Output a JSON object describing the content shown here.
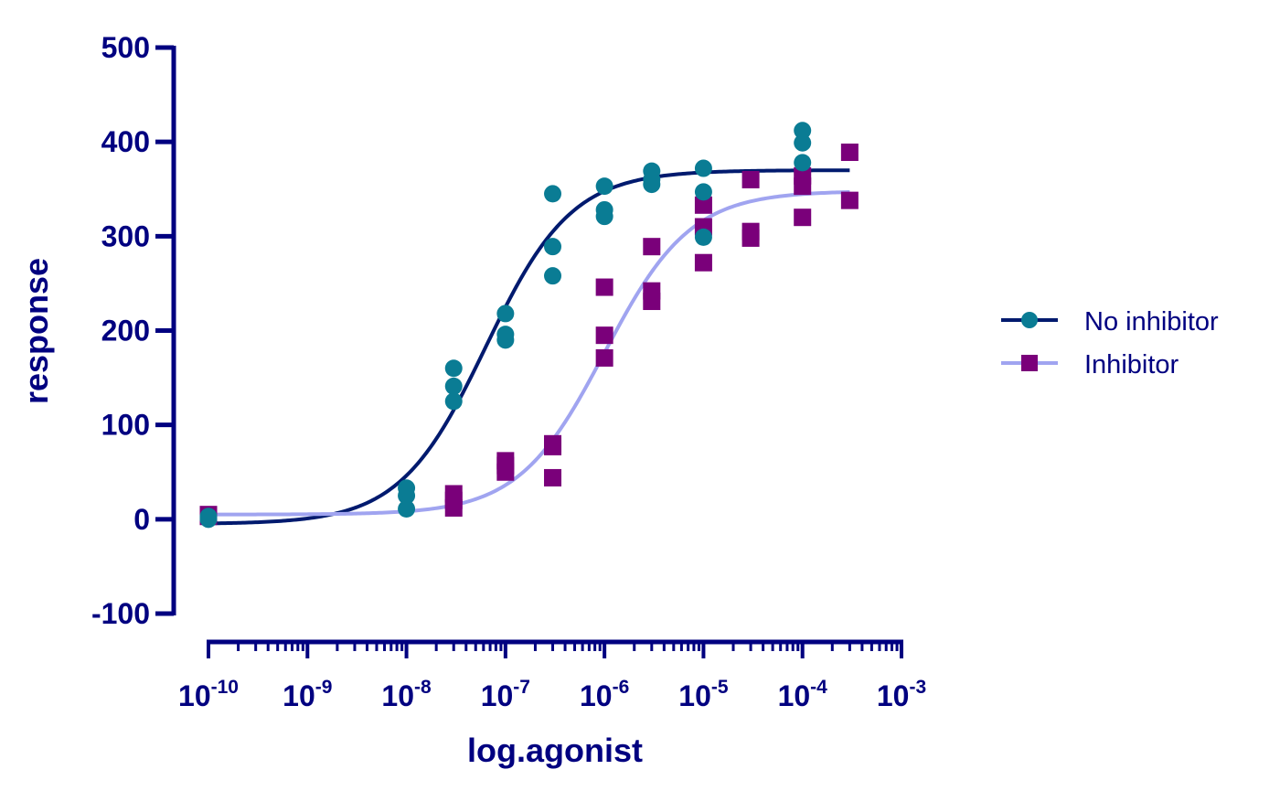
{
  "chart_data": {
    "type": "scatter",
    "xlabel": "log.agonist",
    "ylabel": "response",
    "xscale": "log",
    "xlim": [
      1e-10,
      0.001
    ],
    "ylim": [
      -100,
      500
    ],
    "y_ticks": [
      "-100",
      "0",
      "100",
      "200",
      "300",
      "400",
      "500"
    ],
    "x_ticks": [
      {
        "base": "10",
        "exp": "-10"
      },
      {
        "base": "10",
        "exp": "-9"
      },
      {
        "base": "10",
        "exp": "-8"
      },
      {
        "base": "10",
        "exp": "-7"
      },
      {
        "base": "10",
        "exp": "-6"
      },
      {
        "base": "10",
        "exp": "-5"
      },
      {
        "base": "10",
        "exp": "-4"
      },
      {
        "base": "10",
        "exp": "-3"
      }
    ],
    "grid": false,
    "legend_position": "right",
    "series": [
      {
        "name": "No inhibitor",
        "marker": "circle",
        "marker_color": "#0a7c94",
        "line_color": "#001a6e",
        "fit": {
          "bottom": -5,
          "top": 370,
          "log_ec50": -7.2,
          "hill": 1.0
        },
        "points": [
          [
            1e-10,
            0
          ],
          [
            1e-10,
            3
          ],
          [
            1e-08,
            11
          ],
          [
            1e-08,
            25
          ],
          [
            1e-08,
            33
          ],
          [
            3e-08,
            125
          ],
          [
            3e-08,
            141
          ],
          [
            3e-08,
            160
          ],
          [
            1e-07,
            190
          ],
          [
            1e-07,
            196
          ],
          [
            1e-07,
            218
          ],
          [
            3e-07,
            258
          ],
          [
            3e-07,
            289
          ],
          [
            3e-07,
            345
          ],
          [
            1e-06,
            321
          ],
          [
            1e-06,
            328
          ],
          [
            1e-06,
            353
          ],
          [
            3e-06,
            355
          ],
          [
            3e-06,
            360
          ],
          [
            3e-06,
            369
          ],
          [
            1e-05,
            299
          ],
          [
            1e-05,
            347
          ],
          [
            1e-05,
            372
          ],
          [
            0.0001,
            378
          ],
          [
            0.0001,
            399
          ],
          [
            0.0001,
            412
          ]
        ]
      },
      {
        "name": "Inhibitor",
        "marker": "square",
        "marker_color": "#7a007a",
        "line_color": "#a0a4f0",
        "fit": {
          "bottom": 5,
          "top": 348,
          "log_ec50": -6.0,
          "hill": 1.0
        },
        "points": [
          [
            1e-10,
            3
          ],
          [
            1e-10,
            5
          ],
          [
            3e-08,
            12
          ],
          [
            3e-08,
            20
          ],
          [
            3e-08,
            27
          ],
          [
            1e-07,
            50
          ],
          [
            1e-07,
            57
          ],
          [
            1e-07,
            62
          ],
          [
            3e-07,
            44
          ],
          [
            3e-07,
            77
          ],
          [
            3e-07,
            80
          ],
          [
            1e-06,
            171
          ],
          [
            1e-06,
            195
          ],
          [
            1e-06,
            246
          ],
          [
            3e-06,
            231
          ],
          [
            3e-06,
            242
          ],
          [
            3e-06,
            289
          ],
          [
            1e-05,
            272
          ],
          [
            1e-05,
            310
          ],
          [
            1e-05,
            333
          ],
          [
            3e-05,
            298
          ],
          [
            3e-05,
            305
          ],
          [
            3e-05,
            360
          ],
          [
            0.0001,
            320
          ],
          [
            0.0001,
            353
          ],
          [
            0.0001,
            364
          ],
          [
            0.0003,
            338
          ],
          [
            0.0003,
            389
          ]
        ]
      }
    ]
  }
}
